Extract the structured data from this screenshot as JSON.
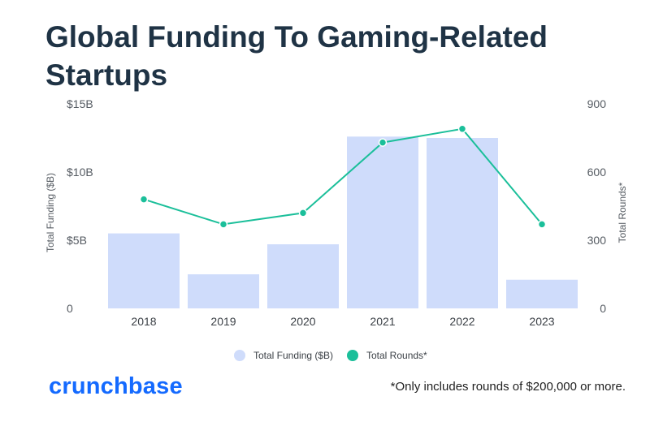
{
  "title": "Global Funding To Gaming-Related Startups",
  "brand": "crunchbase",
  "footnote": "*Only includes rounds of $200,000 or more.",
  "colors": {
    "bar": "#cfdcfb",
    "line": "#1bbf9a",
    "title": "#1f3345",
    "brand": "#146aff"
  },
  "chart_data": {
    "type": "bar",
    "categories": [
      "2018",
      "2019",
      "2020",
      "2021",
      "2022",
      "2023"
    ],
    "series": [
      {
        "name": "Total Funding ($B)",
        "type": "bar",
        "axis": "left",
        "values": [
          5.5,
          2.5,
          4.7,
          12.6,
          12.5,
          2.1
        ]
      },
      {
        "name": "Total Rounds*",
        "type": "line",
        "axis": "right",
        "values": [
          480,
          370,
          420,
          730,
          790,
          370
        ]
      }
    ],
    "y_left": {
      "label": "Total Funding ($B)",
      "ticks": [
        "0",
        "$5B",
        "$10B",
        "$15B"
      ],
      "range": [
        0,
        15
      ]
    },
    "y_right": {
      "label": "Total Rounds*",
      "ticks": [
        "0",
        "300",
        "600",
        "900"
      ],
      "range": [
        0,
        900
      ]
    },
    "legend": {
      "position": "bottom",
      "items": [
        "Total Funding ($B)",
        "Total Rounds*"
      ]
    },
    "grid": false
  }
}
